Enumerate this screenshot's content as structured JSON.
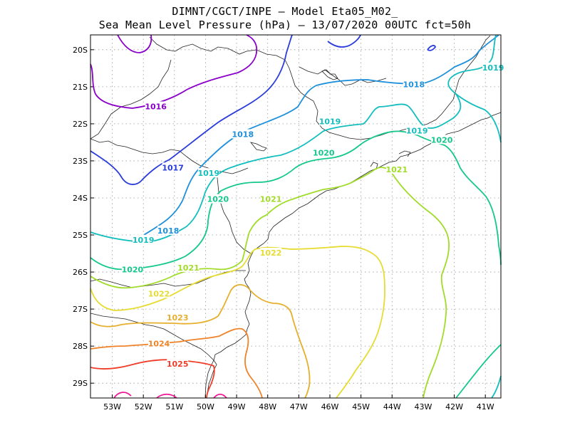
{
  "title_line1": "DIMNT/CGCT/INPE –   Model Eta05_M02_",
  "title_line2": "Sea Mean Level Pressure (hPa) – 13/07/2020 00UTC fct=50h",
  "chart_data": {
    "type": "contour-map",
    "title": "Sea Mean Level Pressure (hPa) – 13/07/2020 00UTC fct=50h",
    "units": "hPa",
    "lon_range": [
      -53.7,
      -40.5
    ],
    "lat_range": [
      -29.4,
      -19.6
    ],
    "grid": true,
    "x_ticks": [
      "53W",
      "52W",
      "51W",
      "50W",
      "49W",
      "48W",
      "47W",
      "46W",
      "45W",
      "44W",
      "43W",
      "42W",
      "41W"
    ],
    "y_ticks": [
      "20S",
      "21S",
      "22S",
      "23S",
      "24S",
      "25S",
      "26S",
      "27S",
      "28S",
      "29S"
    ],
    "contour_labels": [
      {
        "text": "1016",
        "lon": -51.6,
        "lat": -21.55,
        "color": "#8a00c8"
      },
      {
        "text": "1017",
        "lon": -51.05,
        "lat": -23.2,
        "color": "#2a3cdc"
      },
      {
        "text": "1018",
        "lon": -48.8,
        "lat": -22.3,
        "color": "#1e90dc"
      },
      {
        "text": "1018",
        "lon": -51.2,
        "lat": -24.9,
        "color": "#1e90dc"
      },
      {
        "text": "1018",
        "lon": -43.3,
        "lat": -20.95,
        "color": "#1e90dc"
      },
      {
        "text": "1019",
        "lon": -49.9,
        "lat": -23.35,
        "color": "#14bebe"
      },
      {
        "text": "1019",
        "lon": -52.0,
        "lat": -25.15,
        "color": "#14bebe"
      },
      {
        "text": "1019",
        "lon": -46.0,
        "lat": -21.95,
        "color": "#14bebe"
      },
      {
        "text": "1019",
        "lon": -43.2,
        "lat": -22.2,
        "color": "#14bebe"
      },
      {
        "text": "1019",
        "lon": -40.75,
        "lat": -20.5,
        "color": "#14bebe"
      },
      {
        "text": "1020",
        "lon": -49.6,
        "lat": -24.05,
        "color": "#14c88c"
      },
      {
        "text": "1020",
        "lon": -52.35,
        "lat": -25.95,
        "color": "#14c88c"
      },
      {
        "text": "1020",
        "lon": -46.2,
        "lat": -22.8,
        "color": "#14c88c"
      },
      {
        "text": "1020",
        "lon": -42.4,
        "lat": -22.45,
        "color": "#14c88c"
      },
      {
        "text": "1021",
        "lon": -50.55,
        "lat": -25.9,
        "color": "#a0dc28"
      },
      {
        "text": "1021",
        "lon": -47.9,
        "lat": -24.05,
        "color": "#a0dc28"
      },
      {
        "text": "1021",
        "lon": -43.85,
        "lat": -23.25,
        "color": "#a0dc28"
      },
      {
        "text": "1022",
        "lon": -51.5,
        "lat": -26.6,
        "color": "#e6dc32"
      },
      {
        "text": "1022",
        "lon": -47.9,
        "lat": -25.5,
        "color": "#e6dc32"
      },
      {
        "text": "1023",
        "lon": -50.9,
        "lat": -27.25,
        "color": "#e6af2d"
      },
      {
        "text": "1024",
        "lon": -51.5,
        "lat": -27.95,
        "color": "#f08228"
      },
      {
        "text": "1025",
        "lon": -50.9,
        "lat": -28.5,
        "color": "#f03c28"
      }
    ]
  }
}
